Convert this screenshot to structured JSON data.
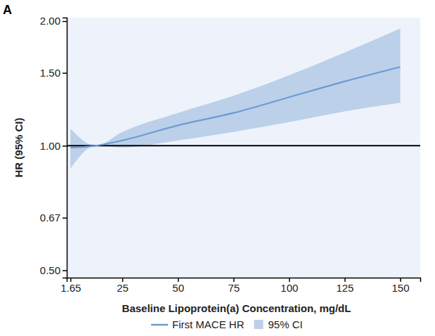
{
  "chart_data": {
    "type": "line",
    "title": "A",
    "x_label": "Baseline Lipoprotein(a) Concentration, mg/dL",
    "y_label": "HR (95% CI)",
    "log": "y",
    "legend": "bottom",
    "x": [
      1.65,
      13,
      25,
      50,
      75,
      100,
      125,
      150
    ],
    "series": [
      {
        "name": "First MACE HR",
        "type": "line",
        "color": "#6b9bd2",
        "values": [
          0.99,
          1.0,
          1.03,
          1.12,
          1.2,
          1.31,
          1.43,
          1.55
        ]
      },
      {
        "name": "95% CI",
        "type": "area",
        "color": "#bcd0ea",
        "lower": [
          0.88,
          1.0,
          0.99,
          1.03,
          1.08,
          1.14,
          1.21,
          1.27
        ],
        "upper": [
          1.1,
          1.0,
          1.08,
          1.2,
          1.32,
          1.48,
          1.68,
          1.92
        ]
      }
    ],
    "reference_line": 1,
    "xlim": [
      0,
      159
    ],
    "xticks": [
      1.65,
      25,
      50,
      75,
      100,
      125,
      150
    ],
    "ylim": [
      0.48,
      2.04
    ],
    "yticks": [
      {
        "value": 0.5,
        "label": "0.50"
      },
      {
        "value": 0.67,
        "label": "0.67"
      },
      {
        "value": 1,
        "label": "1.00"
      },
      {
        "value": 1.5,
        "label": "1.50"
      },
      {
        "value": 2,
        "label": "2.00"
      }
    ]
  }
}
